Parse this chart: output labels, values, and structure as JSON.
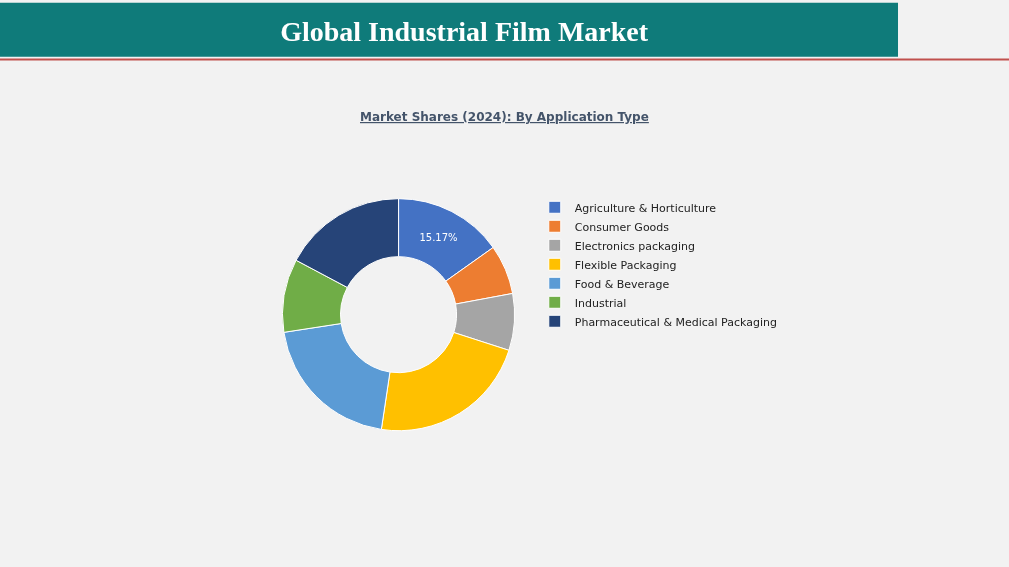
{
  "chart_data": {
    "type": "donut",
    "title": "Global Industrial Film Market",
    "subtitle": "Market Shares (2024): By Application Type",
    "categories": [
      "Agriculture & Horticulture",
      "Consumer Goods",
      "Electronics packaging",
      "Flexible Packaging",
      "Food & Beverage",
      "Industrial",
      "Pharmaceutical & Medical Packaging"
    ],
    "values": [
      15.17,
      6.9,
      7.9,
      22.4,
      20.2,
      10.2,
      17.23
    ],
    "value_labels": [
      "15.17%",
      null,
      null,
      null,
      null,
      null,
      null
    ],
    "colors": [
      "#4472c4",
      "#ed7d31",
      "#a5a5a5",
      "#ffc000",
      "#5b9bd5",
      "#70ad47",
      "#264478"
    ],
    "legend": "right"
  }
}
